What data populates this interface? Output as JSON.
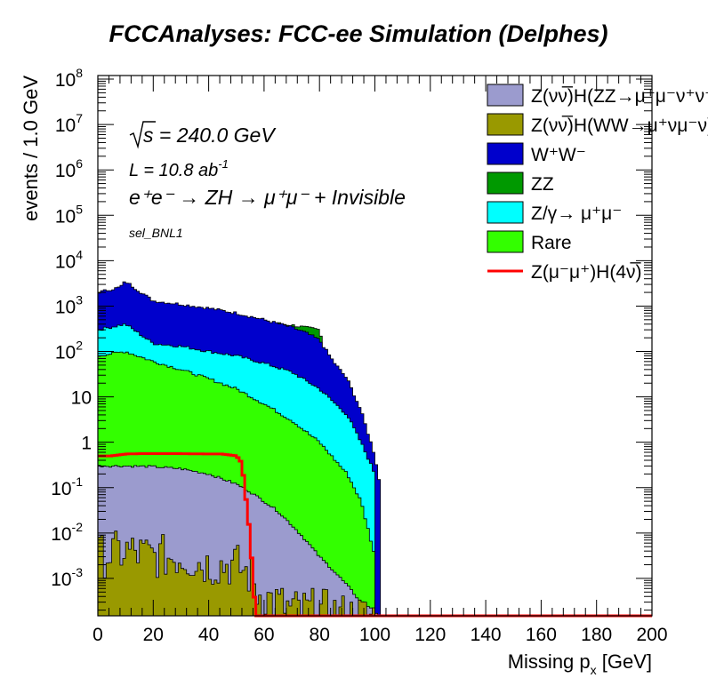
{
  "chart_data": {
    "type": "area",
    "title": "FCCAnalyses: FCC-ee Simulation (Delphes)",
    "xlabel": "Missing p",
    "xlabel_sub": "x",
    "xlabel_unit": " [GeV]",
    "ylabel": "events / 1.0 GeV",
    "xlim": [
      0,
      200
    ],
    "ylim": [
      0.00015,
      120000000
    ],
    "yscale": "log",
    "x_ticks": [
      "0",
      "20",
      "40",
      "60",
      "80",
      "100",
      "120",
      "140",
      "160",
      "180",
      "200"
    ],
    "y_ticks": [
      {
        "base": "10",
        "exp": "8"
      },
      {
        "base": "10",
        "exp": "7"
      },
      {
        "base": "10",
        "exp": "6"
      },
      {
        "base": "10",
        "exp": "5"
      },
      {
        "base": "10",
        "exp": "4"
      },
      {
        "base": "10",
        "exp": "3"
      },
      {
        "base": "10",
        "exp": "2"
      },
      {
        "base": "10",
        "exp": ""
      },
      {
        "base": "1",
        "exp": ""
      },
      {
        "base": "10",
        "exp": "-1"
      },
      {
        "base": "10",
        "exp": "-2"
      },
      {
        "base": "10",
        "exp": "-3"
      }
    ],
    "annotations": {
      "sqrt_s": "s = 240.0 GeV",
      "lumi": "L = 10.8 ab",
      "lumi_exp": "-1",
      "process": "e⁺e⁻ → ZH → μ⁺μ⁻ + Invisible",
      "selection": "sel_BNL1"
    },
    "legend_position": "top-right",
    "grid": false,
    "series": [
      {
        "name": "Z(νν̅)H(ZZ→μ⁺μ⁻ν⁺ν⁻)",
        "color": "#9b9bce",
        "style": "fill",
        "x": [
          0,
          10,
          20,
          30,
          40,
          50,
          55,
          60,
          65,
          70,
          75,
          80,
          85,
          90,
          95,
          100,
          101
        ],
        "values": [
          0.3,
          0.3,
          0.29,
          0.26,
          0.2,
          0.12,
          0.08,
          0.05,
          0.03,
          0.015,
          0.007,
          0.003,
          0.0015,
          0.0007,
          0.0003,
          0.0002,
          0.00015
        ]
      },
      {
        "name": "Z(νν̅)H(WW→μ⁺νμ⁻ν)",
        "color": "#999900",
        "style": "fill",
        "x": [
          0,
          10,
          20,
          30,
          40,
          50,
          56,
          57,
          60,
          70,
          80,
          90,
          100
        ],
        "values": [
          0.003,
          0.004,
          0.003,
          0.003,
          0.002,
          0.002,
          0.001,
          0.0005,
          0.0004,
          0.0002,
          0.0002,
          0.00015,
          0.00015
        ]
      },
      {
        "name": "W⁺W⁻",
        "color": "#0000cc",
        "style": "fill",
        "x": [
          0,
          8,
          10,
          20,
          30,
          40,
          50,
          60,
          70,
          75,
          80,
          85,
          90,
          95,
          100,
          102
        ],
        "values": [
          2000,
          2600,
          3500,
          1300,
          1100,
          900,
          700,
          500,
          340,
          260,
          180,
          60,
          25,
          5,
          0.5,
          0.1
        ]
      },
      {
        "name": "ZZ",
        "color": "#009900",
        "style": "fill",
        "x": [
          0,
          10,
          20,
          30,
          40,
          50,
          60,
          70,
          80,
          82,
          85,
          90,
          100
        ],
        "values": [
          700,
          1000,
          900,
          800,
          700,
          550,
          450,
          380,
          300,
          80,
          20,
          5,
          0.3
        ]
      },
      {
        "name": "Z/γ→ μ⁺μ⁻",
        "color": "#00ffff",
        "style": "fill",
        "x": [
          0,
          10,
          20,
          30,
          40,
          50,
          60,
          70,
          80,
          90,
          95,
          100
        ],
        "values": [
          300,
          400,
          150,
          130,
          100,
          80,
          55,
          35,
          15,
          4,
          1,
          0.2
        ]
      },
      {
        "name": "Rare",
        "color": "#33ff00",
        "style": "fill",
        "x": [
          0,
          10,
          20,
          30,
          40,
          50,
          60,
          70,
          80,
          90,
          95,
          100
        ],
        "values": [
          80,
          100,
          60,
          40,
          25,
          15,
          7,
          3,
          1,
          0.2,
          0.05,
          0.003
        ]
      },
      {
        "name": "Z(μ⁻μ⁺)H(4ν̅)",
        "color": "#ff0000",
        "style": "line",
        "x": [
          0,
          5,
          10,
          15,
          20,
          30,
          40,
          45,
          50,
          52,
          53,
          54,
          55,
          56,
          57,
          58,
          100,
          200
        ],
        "values": [
          0.5,
          0.5,
          0.55,
          0.56,
          0.56,
          0.56,
          0.55,
          0.55,
          0.5,
          0.35,
          0.1,
          0.03,
          0.008,
          0.001,
          0.00015,
          0.00015,
          0.00015,
          0.00015
        ]
      }
    ]
  }
}
